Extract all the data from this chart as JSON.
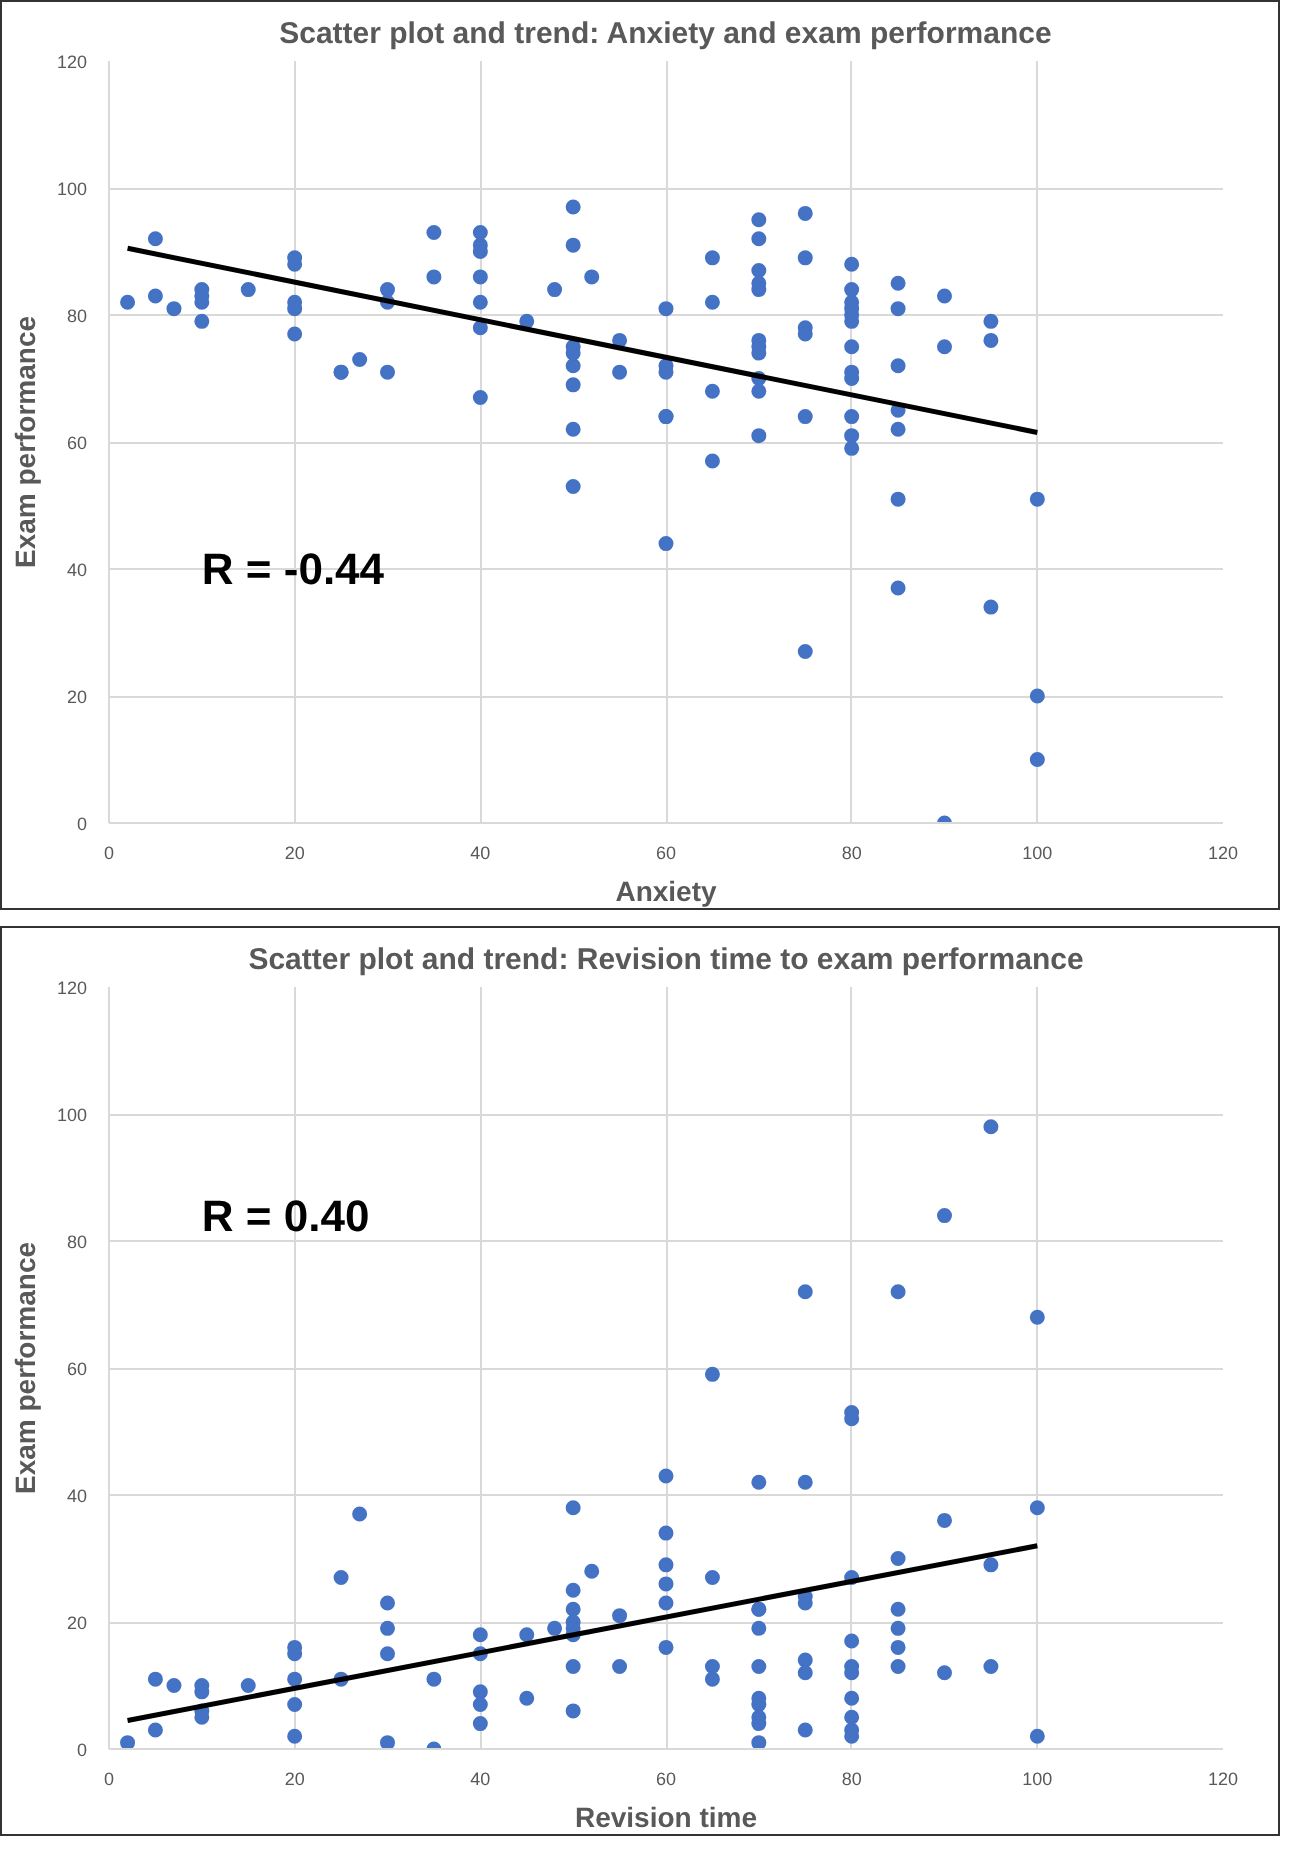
{
  "chart_data": [
    {
      "type": "scatter",
      "title": "Scatter plot and trend: Anxiety and exam performance",
      "xlabel": "Anxiety",
      "ylabel": "Exam performance",
      "xlim": [
        0,
        120
      ],
      "ylim": [
        0,
        120
      ],
      "xticks": [
        0,
        20,
        40,
        60,
        80,
        100,
        120
      ],
      "yticks": [
        0,
        20,
        40,
        60,
        80,
        100,
        120
      ],
      "grid": true,
      "marker": "circle",
      "annotations": [
        "R = -0.44"
      ],
      "series": [
        {
          "color": "#4472c4",
          "x": [
            2,
            5,
            5,
            7,
            10,
            10,
            10,
            10,
            15,
            20,
            20,
            20,
            20,
            20,
            25,
            25,
            27,
            30,
            30,
            30,
            35,
            35,
            40,
            40,
            40,
            40,
            40,
            40,
            40,
            45,
            48,
            50,
            50,
            50,
            50,
            50,
            50,
            50,
            50,
            52,
            55,
            55,
            60,
            60,
            60,
            60,
            60,
            60,
            65,
            65,
            65,
            65,
            70,
            70,
            70,
            70,
            70,
            70,
            70,
            70,
            70,
            70,
            70,
            75,
            75,
            75,
            75,
            75,
            75,
            80,
            80,
            80,
            80,
            80,
            80,
            80,
            80,
            80,
            80,
            80,
            80,
            85,
            85,
            85,
            85,
            85,
            85,
            85,
            90,
            90,
            90,
            95,
            95,
            95,
            100,
            100,
            100
          ],
          "values": [
            82,
            92,
            83,
            81,
            84,
            83,
            82,
            79,
            84,
            89,
            88,
            82,
            81,
            77,
            71,
            71,
            73,
            84,
            82,
            71,
            93,
            86,
            93,
            91,
            90,
            86,
            82,
            78,
            67,
            79,
            84,
            97,
            91,
            75,
            74,
            72,
            69,
            62,
            53,
            86,
            76,
            71,
            81,
            72,
            71,
            64,
            64,
            44,
            89,
            82,
            68,
            57,
            95,
            92,
            87,
            85,
            84,
            76,
            75,
            74,
            70,
            68,
            61,
            96,
            89,
            78,
            77,
            64,
            27,
            88,
            84,
            82,
            81,
            80,
            79,
            75,
            71,
            70,
            64,
            61,
            59,
            85,
            81,
            72,
            65,
            62,
            51,
            37,
            83,
            75,
            0,
            79,
            76,
            34,
            51,
            20,
            10
          ]
        },
        {
          "type": "line",
          "color": "#000000",
          "marker": "none",
          "x": [
            2,
            100
          ],
          "values": [
            90.5,
            61.5
          ]
        }
      ]
    },
    {
      "type": "scatter",
      "title": "Scatter plot and trend: Revision time to exam performance",
      "xlabel": "Revision time",
      "ylabel": "Exam performance",
      "xlim": [
        0,
        120
      ],
      "ylim": [
        0,
        120
      ],
      "xticks": [
        0,
        20,
        40,
        60,
        80,
        100,
        120
      ],
      "yticks": [
        0,
        20,
        40,
        60,
        80,
        100,
        120
      ],
      "grid": true,
      "marker": "circle",
      "annotations": [
        "R = 0.40"
      ],
      "series": [
        {
          "color": "#4472c4",
          "x": [
            2,
            5,
            5,
            7,
            10,
            10,
            10,
            10,
            15,
            20,
            20,
            20,
            20,
            20,
            25,
            25,
            27,
            30,
            30,
            30,
            30,
            35,
            35,
            40,
            40,
            40,
            40,
            40,
            45,
            45,
            48,
            50,
            50,
            50,
            50,
            50,
            50,
            50,
            50,
            52,
            55,
            55,
            60,
            60,
            60,
            60,
            60,
            60,
            65,
            65,
            65,
            65,
            70,
            70,
            70,
            70,
            70,
            70,
            70,
            70,
            70,
            70,
            75,
            75,
            75,
            75,
            75,
            75,
            75,
            80,
            80,
            80,
            80,
            80,
            80,
            80,
            80,
            80,
            80,
            85,
            85,
            85,
            85,
            85,
            85,
            90,
            90,
            90,
            95,
            95,
            95,
            100,
            100,
            100
          ],
          "values": [
            1,
            11,
            3,
            10,
            10,
            9,
            6,
            5,
            10,
            16,
            15,
            11,
            7,
            2,
            27,
            11,
            37,
            23,
            19,
            15,
            1,
            11,
            0,
            18,
            15,
            9,
            7,
            4,
            18,
            8,
            19,
            38,
            25,
            22,
            20,
            19,
            18,
            13,
            6,
            28,
            21,
            13,
            43,
            34,
            29,
            26,
            23,
            16,
            59,
            27,
            13,
            11,
            42,
            22,
            22,
            19,
            13,
            8,
            7,
            5,
            4,
            1,
            72,
            42,
            24,
            23,
            14,
            12,
            3,
            53,
            52,
            27,
            17,
            13,
            12,
            8,
            5,
            3,
            2,
            72,
            30,
            22,
            19,
            16,
            13,
            84,
            36,
            12,
            98,
            29,
            13,
            68,
            38,
            2
          ]
        },
        {
          "type": "line",
          "color": "#000000",
          "marker": "none",
          "x": [
            2,
            100
          ],
          "values": [
            4.5,
            32
          ]
        }
      ]
    }
  ]
}
